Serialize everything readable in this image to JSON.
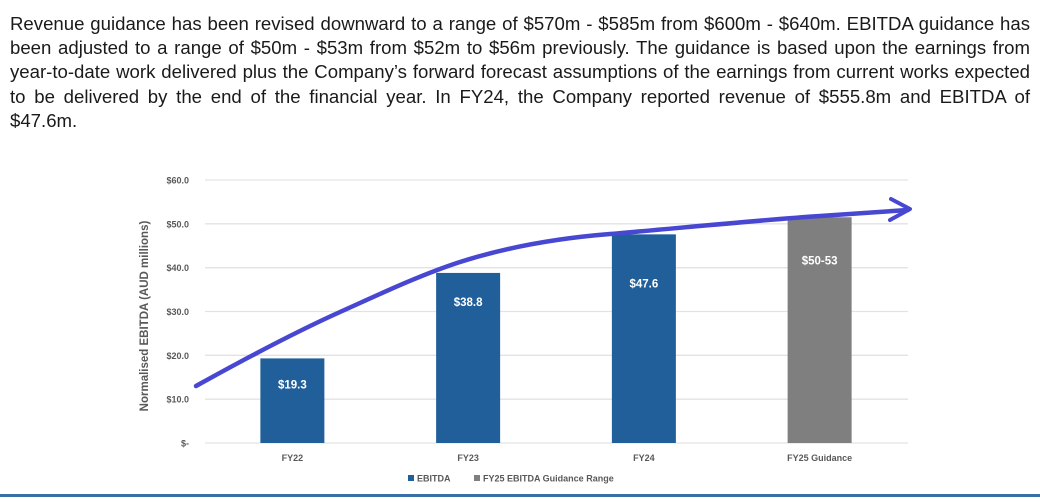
{
  "paragraph": {
    "text": "Revenue guidance has been revised downward to a range of $570m - $585m from $600m - $640m. EBITDA guidance has been adjusted to a range of $50m - $53m from $52m to $56m previously. The guidance is based upon the earnings from year-to-date work delivered plus the Company’s forward forecast assumptions of the earnings from current works expected to be delivered by the end of the financial year. In FY24, the Company reported revenue of $555.8m and EBITDA of $47.6m."
  },
  "colors": {
    "ebitda": "#215f9a",
    "guidance": "#7f7f7f",
    "trend_arrow": "#4747d1",
    "grid": "#e3e3e3",
    "axis_text": "#595959",
    "bottom_rule": "#3a6ea8"
  },
  "chart_data": {
    "type": "bar",
    "title": "",
    "xlabel": "",
    "ylabel": "Normalised EBITDA (AUD millions)",
    "ylim": [
      0,
      60
    ],
    "y_ticks": [
      0,
      10,
      20,
      30,
      40,
      50,
      60
    ],
    "y_tick_labels": [
      "$-",
      "$10.0",
      "$20.0",
      "$30.0",
      "$40.0",
      "$50.0",
      "$60.0"
    ],
    "grid": true,
    "categories": [
      "FY22",
      "FY23",
      "FY24",
      "FY25 Guidance"
    ],
    "series": [
      {
        "name": "EBITDA",
        "values": [
          19.3,
          38.8,
          47.6,
          null
        ],
        "labels": [
          "$19.3",
          "$38.8",
          "$47.6",
          null
        ]
      },
      {
        "name": "FY25 EBITDA Guidance Range",
        "values": [
          null,
          null,
          null,
          51.5
        ],
        "range": [
          50,
          53
        ],
        "labels": [
          null,
          null,
          null,
          "$50-53"
        ]
      }
    ],
    "legend": {
      "position": "bottom",
      "entries": [
        "EBITDA",
        "FY25 EBITDA Guidance Range"
      ]
    },
    "annotations": [
      {
        "type": "trend-arrow",
        "description": "Hand-drawn upward curved arrow tracing growth from FY22 through FY25 guidance"
      }
    ]
  }
}
